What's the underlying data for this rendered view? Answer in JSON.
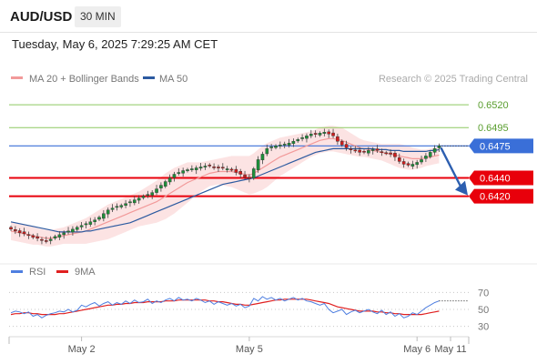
{
  "header": {
    "symbol": "AUD/USD",
    "timeframe": "30 MIN"
  },
  "datetime": "Tuesday, May 6, 2025 7:29:25 AM CET",
  "legend": {
    "ma20_bb": "MA 20 + Bollinger Bands",
    "ma50": "MA 50",
    "credit": "Research © 2025 Trading Central"
  },
  "indicator_legend": {
    "rsi": "RSI",
    "ma9": "9MA"
  },
  "colors": {
    "support_red": "#e8000b",
    "current_blue": "#3a6fd8",
    "resistance_green": "#8ec960",
    "ma20": "#f29a9a",
    "bollinger_fill": "#fbdada",
    "ma50": "#2c5aa0",
    "candle_up": "#1d8f3a",
    "candle_down": "#d01c1c",
    "rsi_line": "#4f7fe0",
    "rsi_ma": "#e02020",
    "forecast_arrow": "#2d5fb0"
  },
  "chart_data": {
    "type": "line",
    "series_kind": "candlestick",
    "ylim": [
      0.6356,
      0.6535
    ],
    "x_ticks": [
      {
        "label": "May 2",
        "index": 16
      },
      {
        "label": "May 5",
        "index": 54
      },
      {
        "label": "May 6",
        "index": 92
      },
      {
        "label": "May 11",
        "index": 108
      }
    ],
    "levels": [
      {
        "name": "resistance",
        "value": 0.652,
        "label": "0.6520"
      },
      {
        "name": "resistance",
        "value": 0.6495,
        "label": "0.6495"
      },
      {
        "name": "current",
        "value": 0.6475,
        "label": "0.6475"
      },
      {
        "name": "support",
        "value": 0.644,
        "label": "0.6440"
      },
      {
        "name": "support",
        "value": 0.642,
        "label": "0.6420"
      }
    ],
    "forecast": {
      "from": 0.6473,
      "to": 0.6421
    },
    "closes": [
      0.6384,
      0.6382,
      0.638,
      0.6379,
      0.6377,
      0.6375,
      0.6374,
      0.6372,
      0.6371,
      0.6373,
      0.6376,
      0.6378,
      0.638,
      0.6382,
      0.6384,
      0.6386,
      0.6388,
      0.639,
      0.6392,
      0.6394,
      0.6397,
      0.6401,
      0.6405,
      0.6407,
      0.6409,
      0.641,
      0.6412,
      0.6414,
      0.6416,
      0.6418,
      0.642,
      0.6422,
      0.6424,
      0.6428,
      0.6432,
      0.6436,
      0.644,
      0.6444,
      0.6446,
      0.6448,
      0.6449,
      0.645,
      0.6451,
      0.6452,
      0.6453,
      0.6453,
      0.6452,
      0.6451,
      0.6451,
      0.645,
      0.6449,
      0.6446,
      0.6444,
      0.6441,
      0.6439,
      0.645,
      0.646,
      0.6466,
      0.6472,
      0.6474,
      0.6475,
      0.6476,
      0.6477,
      0.6478,
      0.648,
      0.6482,
      0.6484,
      0.6486,
      0.6488,
      0.6488,
      0.6489,
      0.649,
      0.6488,
      0.6486,
      0.648,
      0.6476,
      0.6473,
      0.6471,
      0.647,
      0.6468,
      0.6468,
      0.647,
      0.6471,
      0.647,
      0.6468,
      0.6467,
      0.6466,
      0.6463,
      0.6458,
      0.6455,
      0.6454,
      0.6455,
      0.6457,
      0.646,
      0.6464,
      0.6468,
      0.6472,
      0.6475
    ],
    "ma20": [
      0.6382,
      0.6381,
      0.638,
      0.6379,
      0.6378,
      0.6377,
      0.6376,
      0.6375,
      0.6374,
      0.6374,
      0.6375,
      0.6376,
      0.6377,
      0.6378,
      0.6379,
      0.638,
      0.6381,
      0.6382,
      0.6384,
      0.6386,
      0.6388,
      0.639,
      0.6392,
      0.6394,
      0.6396,
      0.6398,
      0.64,
      0.6402,
      0.6404,
      0.6406,
      0.6408,
      0.641,
      0.6412,
      0.6414,
      0.6417,
      0.642,
      0.6423,
      0.6426,
      0.6429,
      0.6432,
      0.6435,
      0.6437,
      0.6439,
      0.6441,
      0.6443,
      0.6445,
      0.6446,
      0.6447,
      0.6447,
      0.6447,
      0.6447,
      0.6446,
      0.6445,
      0.6444,
      0.6443,
      0.6445,
      0.6448,
      0.6451,
      0.6454,
      0.6457,
      0.646,
      0.6463,
      0.6465,
      0.6467,
      0.6469,
      0.6471,
      0.6473,
      0.6475,
      0.6477,
      0.6479,
      0.6481,
      0.6482,
      0.6483,
      0.6483,
      0.6482,
      0.6481,
      0.6479,
      0.6477,
      0.6475,
      0.6473,
      0.6472,
      0.6471,
      0.647,
      0.6469,
      0.6468,
      0.6467,
      0.6466,
      0.6465,
      0.6464,
      0.6463,
      0.6462,
      0.6461,
      0.6461,
      0.6461,
      0.6462,
      0.6463,
      0.6464,
      0.6465
    ],
    "ma50": [
      0.6392,
      0.6391,
      0.639,
      0.6389,
      0.6388,
      0.6387,
      0.6386,
      0.6385,
      0.6384,
      0.6383,
      0.6382,
      0.6381,
      0.6381,
      0.6381,
      0.6381,
      0.6381,
      0.6381,
      0.6382,
      0.6382,
      0.6383,
      0.6384,
      0.6385,
      0.6386,
      0.6387,
      0.6388,
      0.6389,
      0.639,
      0.6391,
      0.6393,
      0.6395,
      0.6397,
      0.6399,
      0.6401,
      0.6403,
      0.6405,
      0.6407,
      0.6409,
      0.6411,
      0.6413,
      0.6415,
      0.6417,
      0.6419,
      0.6421,
      0.6423,
      0.6425,
      0.6427,
      0.6429,
      0.6431,
      0.6433,
      0.6434,
      0.6435,
      0.6436,
      0.6437,
      0.6438,
      0.6439,
      0.644,
      0.6442,
      0.6444,
      0.6446,
      0.6448,
      0.645,
      0.6452,
      0.6454,
      0.6456,
      0.6458,
      0.646,
      0.6462,
      0.6464,
      0.6466,
      0.6468,
      0.6469,
      0.647,
      0.6471,
      0.6472,
      0.6472,
      0.6472,
      0.6472,
      0.6472,
      0.6472,
      0.6472,
      0.6472,
      0.6472,
      0.6472,
      0.6471,
      0.6471,
      0.6471,
      0.647,
      0.647,
      0.647,
      0.6469,
      0.6469,
      0.6469,
      0.6469,
      0.6469,
      0.6469,
      0.647,
      0.647,
      0.6471
    ],
    "bollinger_width": [
      0.001,
      0.001,
      0.001,
      0.001,
      0.001,
      0.001,
      0.0009,
      0.0009,
      0.0009,
      0.0009,
      0.0009,
      0.0009,
      0.0009,
      0.001,
      0.0011,
      0.0012,
      0.0013,
      0.0014,
      0.0015,
      0.0016,
      0.0017,
      0.0018,
      0.0019,
      0.0019,
      0.0019,
      0.0019,
      0.0019,
      0.0019,
      0.0019,
      0.0019,
      0.002,
      0.0021,
      0.0022,
      0.0023,
      0.0024,
      0.0025,
      0.0025,
      0.0025,
      0.0024,
      0.0023,
      0.0022,
      0.002,
      0.0018,
      0.0016,
      0.0015,
      0.0014,
      0.0014,
      0.0014,
      0.0015,
      0.0016,
      0.0017,
      0.0018,
      0.0019,
      0.002,
      0.0021,
      0.0022,
      0.0023,
      0.0024,
      0.0024,
      0.0023,
      0.0022,
      0.0021,
      0.002,
      0.0019,
      0.0018,
      0.0017,
      0.0016,
      0.0015,
      0.0014,
      0.0014,
      0.0014,
      0.0014,
      0.0014,
      0.0014,
      0.0014,
      0.0014,
      0.0013,
      0.0012,
      0.0011,
      0.001,
      0.0009,
      0.0009,
      0.0009,
      0.0009,
      0.0009,
      0.001,
      0.0011,
      0.0012,
      0.0013,
      0.0013,
      0.0013,
      0.0012,
      0.0011,
      0.001,
      0.0009,
      0.0009,
      0.0009,
      0.0009
    ],
    "rsi": {
      "ylim": [
        20,
        80
      ],
      "ticks": [
        70,
        50,
        30
      ],
      "values": [
        46,
        48,
        47,
        45,
        47,
        42,
        44,
        40,
        43,
        45,
        46,
        48,
        47,
        50,
        47,
        49,
        55,
        53,
        56,
        58,
        54,
        57,
        59,
        55,
        58,
        56,
        60,
        57,
        61,
        58,
        59,
        62,
        57,
        60,
        58,
        61,
        63,
        60,
        64,
        61,
        62,
        60,
        63,
        61,
        58,
        60,
        56,
        59,
        57,
        55,
        57,
        54,
        56,
        52,
        54,
        63,
        60,
        65,
        62,
        64,
        61,
        63,
        60,
        62,
        64,
        61,
        63,
        60,
        59,
        57,
        55,
        57,
        50,
        46,
        48,
        50,
        44,
        47,
        49,
        46,
        48,
        50,
        47,
        45,
        49,
        44,
        47,
        42,
        45,
        40,
        42,
        46,
        44,
        48,
        52,
        55,
        58,
        60
      ],
      "ma9": [
        44,
        45,
        45,
        46,
        46,
        45,
        45,
        44,
        44,
        44,
        44,
        45,
        45,
        46,
        47,
        48,
        49,
        50,
        51,
        52,
        53,
        54,
        55,
        55,
        56,
        56,
        57,
        57,
        58,
        58,
        58,
        59,
        59,
        59,
        59,
        60,
        60,
        60,
        61,
        61,
        61,
        61,
        61,
        61,
        61,
        60,
        60,
        59,
        59,
        58,
        57,
        56,
        56,
        55,
        55,
        56,
        57,
        58,
        59,
        60,
        61,
        61,
        62,
        62,
        62,
        62,
        62,
        62,
        61,
        60,
        59,
        58,
        57,
        55,
        53,
        52,
        51,
        50,
        49,
        48,
        48,
        48,
        48,
        47,
        47,
        46,
        46,
        45,
        45,
        44,
        44,
        44,
        44,
        44,
        45,
        46,
        47,
        48
      ]
    }
  }
}
